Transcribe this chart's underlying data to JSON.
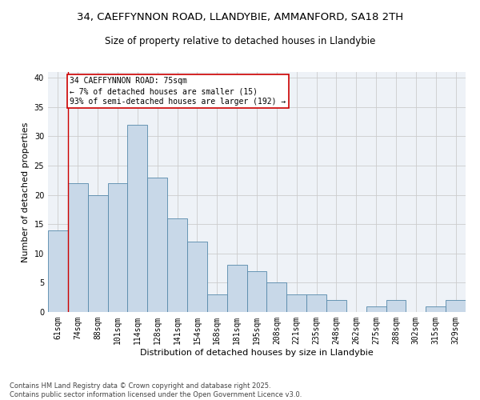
{
  "title_line1": "34, CAEFFYNNON ROAD, LLANDYBIE, AMMANFORD, SA18 2TH",
  "title_line2": "Size of property relative to detached houses in Llandybie",
  "xlabel": "Distribution of detached houses by size in Llandybie",
  "ylabel": "Number of detached properties",
  "categories": [
    "61sqm",
    "74sqm",
    "88sqm",
    "101sqm",
    "114sqm",
    "128sqm",
    "141sqm",
    "154sqm",
    "168sqm",
    "181sqm",
    "195sqm",
    "208sqm",
    "221sqm",
    "235sqm",
    "248sqm",
    "262sqm",
    "275sqm",
    "288sqm",
    "302sqm",
    "315sqm",
    "329sqm"
  ],
  "values": [
    14,
    22,
    20,
    22,
    32,
    23,
    16,
    12,
    3,
    8,
    7,
    5,
    3,
    3,
    2,
    0,
    1,
    2,
    0,
    1,
    2
  ],
  "bar_color": "#c8d8e8",
  "bar_edge_color": "#5588aa",
  "grid_color": "#cccccc",
  "bg_color": "#eef2f7",
  "annotation_text": "34 CAEFFYNNON ROAD: 75sqm\n← 7% of detached houses are smaller (15)\n93% of semi-detached houses are larger (192) →",
  "ylim": [
    0,
    41
  ],
  "yticks": [
    0,
    5,
    10,
    15,
    20,
    25,
    30,
    35,
    40
  ],
  "footer": "Contains HM Land Registry data © Crown copyright and database right 2025.\nContains public sector information licensed under the Open Government Licence v3.0.",
  "title_fontsize": 9.5,
  "subtitle_fontsize": 8.5,
  "axis_label_fontsize": 8,
  "tick_fontsize": 7,
  "annotation_fontsize": 7,
  "footer_fontsize": 6
}
